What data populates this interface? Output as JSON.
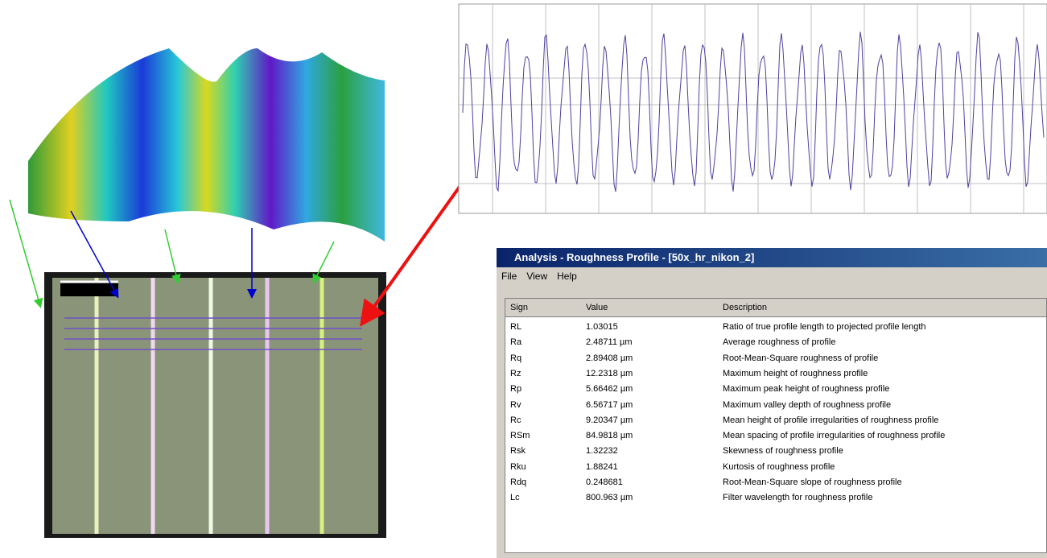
{
  "window": {
    "title": "Analysis - Roughness Profile - [50x_hr_nikon_2]",
    "menu": [
      "File",
      "View",
      "Help"
    ]
  },
  "table": {
    "columns": [
      "Sign",
      "Value",
      "Description"
    ],
    "rows": [
      [
        "RL",
        "1.03015",
        "Ratio of true profile length to projected profile length"
      ],
      [
        "Ra",
        "2.48711 µm",
        "Average roughness of profile"
      ],
      [
        "Rq",
        "2.89408 µm",
        "Root-Mean-Square roughness of profile"
      ],
      [
        "Rz",
        "12.2318 µm",
        "Maximum height of roughness profile"
      ],
      [
        "Rp",
        "5.66462 µm",
        "Maximum peak height of roughness profile"
      ],
      [
        "Rv",
        "6.56717 µm",
        "Maximum valley depth of roughness profile"
      ],
      [
        "Rc",
        "9.20347 µm",
        "Mean height of profile irregularities of roughness profile"
      ],
      [
        "RSm",
        "84.9818 µm",
        "Mean spacing of profile irregularities of roughness profile"
      ],
      [
        "Rsk",
        "1.32232",
        "Skewness of roughness profile"
      ],
      [
        "Rku",
        "1.88241",
        "Kurtosis of roughness profile"
      ],
      [
        "Rdq",
        "0.248681",
        "Root-Mean-Square slope of roughness profile"
      ],
      [
        "Lc",
        "800.963 µm",
        "Filter wavelength for roughness profile"
      ]
    ]
  }
}
